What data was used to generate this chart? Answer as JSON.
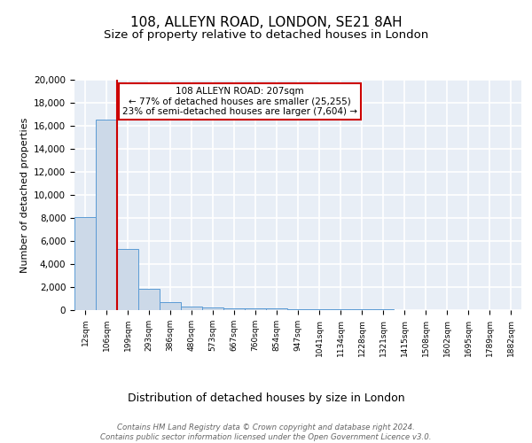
{
  "title": "108, ALLEYN ROAD, LONDON, SE21 8AH",
  "subtitle": "Size of property relative to detached houses in London",
  "xlabel": "Distribution of detached houses by size in London",
  "ylabel": "Number of detached properties",
  "bin_labels": [
    "12sqm",
    "106sqm",
    "199sqm",
    "293sqm",
    "386sqm",
    "480sqm",
    "573sqm",
    "667sqm",
    "760sqm",
    "854sqm",
    "947sqm",
    "1041sqm",
    "1134sqm",
    "1228sqm",
    "1321sqm",
    "1415sqm",
    "1508sqm",
    "1602sqm",
    "1695sqm",
    "1789sqm",
    "1882sqm"
  ],
  "bar_heights": [
    8100,
    16500,
    5300,
    1850,
    700,
    290,
    220,
    175,
    170,
    120,
    100,
    80,
    60,
    50,
    40,
    30,
    20,
    15,
    10,
    8,
    5
  ],
  "bar_color": "#ccd9e8",
  "bar_edge_color": "#5b9bd5",
  "red_line_index": 2,
  "annotation_line1": "108 ALLEYN ROAD: 207sqm",
  "annotation_line2": "← 77% of detached houses are smaller (25,255)",
  "annotation_line3": "23% of semi-detached houses are larger (7,604) →",
  "annotation_box_color": "#ffffff",
  "annotation_box_edge_color": "#cc0000",
  "ylim": [
    0,
    20000
  ],
  "yticks": [
    0,
    2000,
    4000,
    6000,
    8000,
    10000,
    12000,
    14000,
    16000,
    18000,
    20000
  ],
  "footer": "Contains HM Land Registry data © Crown copyright and database right 2024.\nContains public sector information licensed under the Open Government Licence v3.0.",
  "background_color": "#e8eef6",
  "grid_color": "#ffffff",
  "red_line_color": "#cc0000",
  "title_fontsize": 11,
  "subtitle_fontsize": 9.5,
  "ylabel_fontsize": 8,
  "xlabel_fontsize": 9
}
